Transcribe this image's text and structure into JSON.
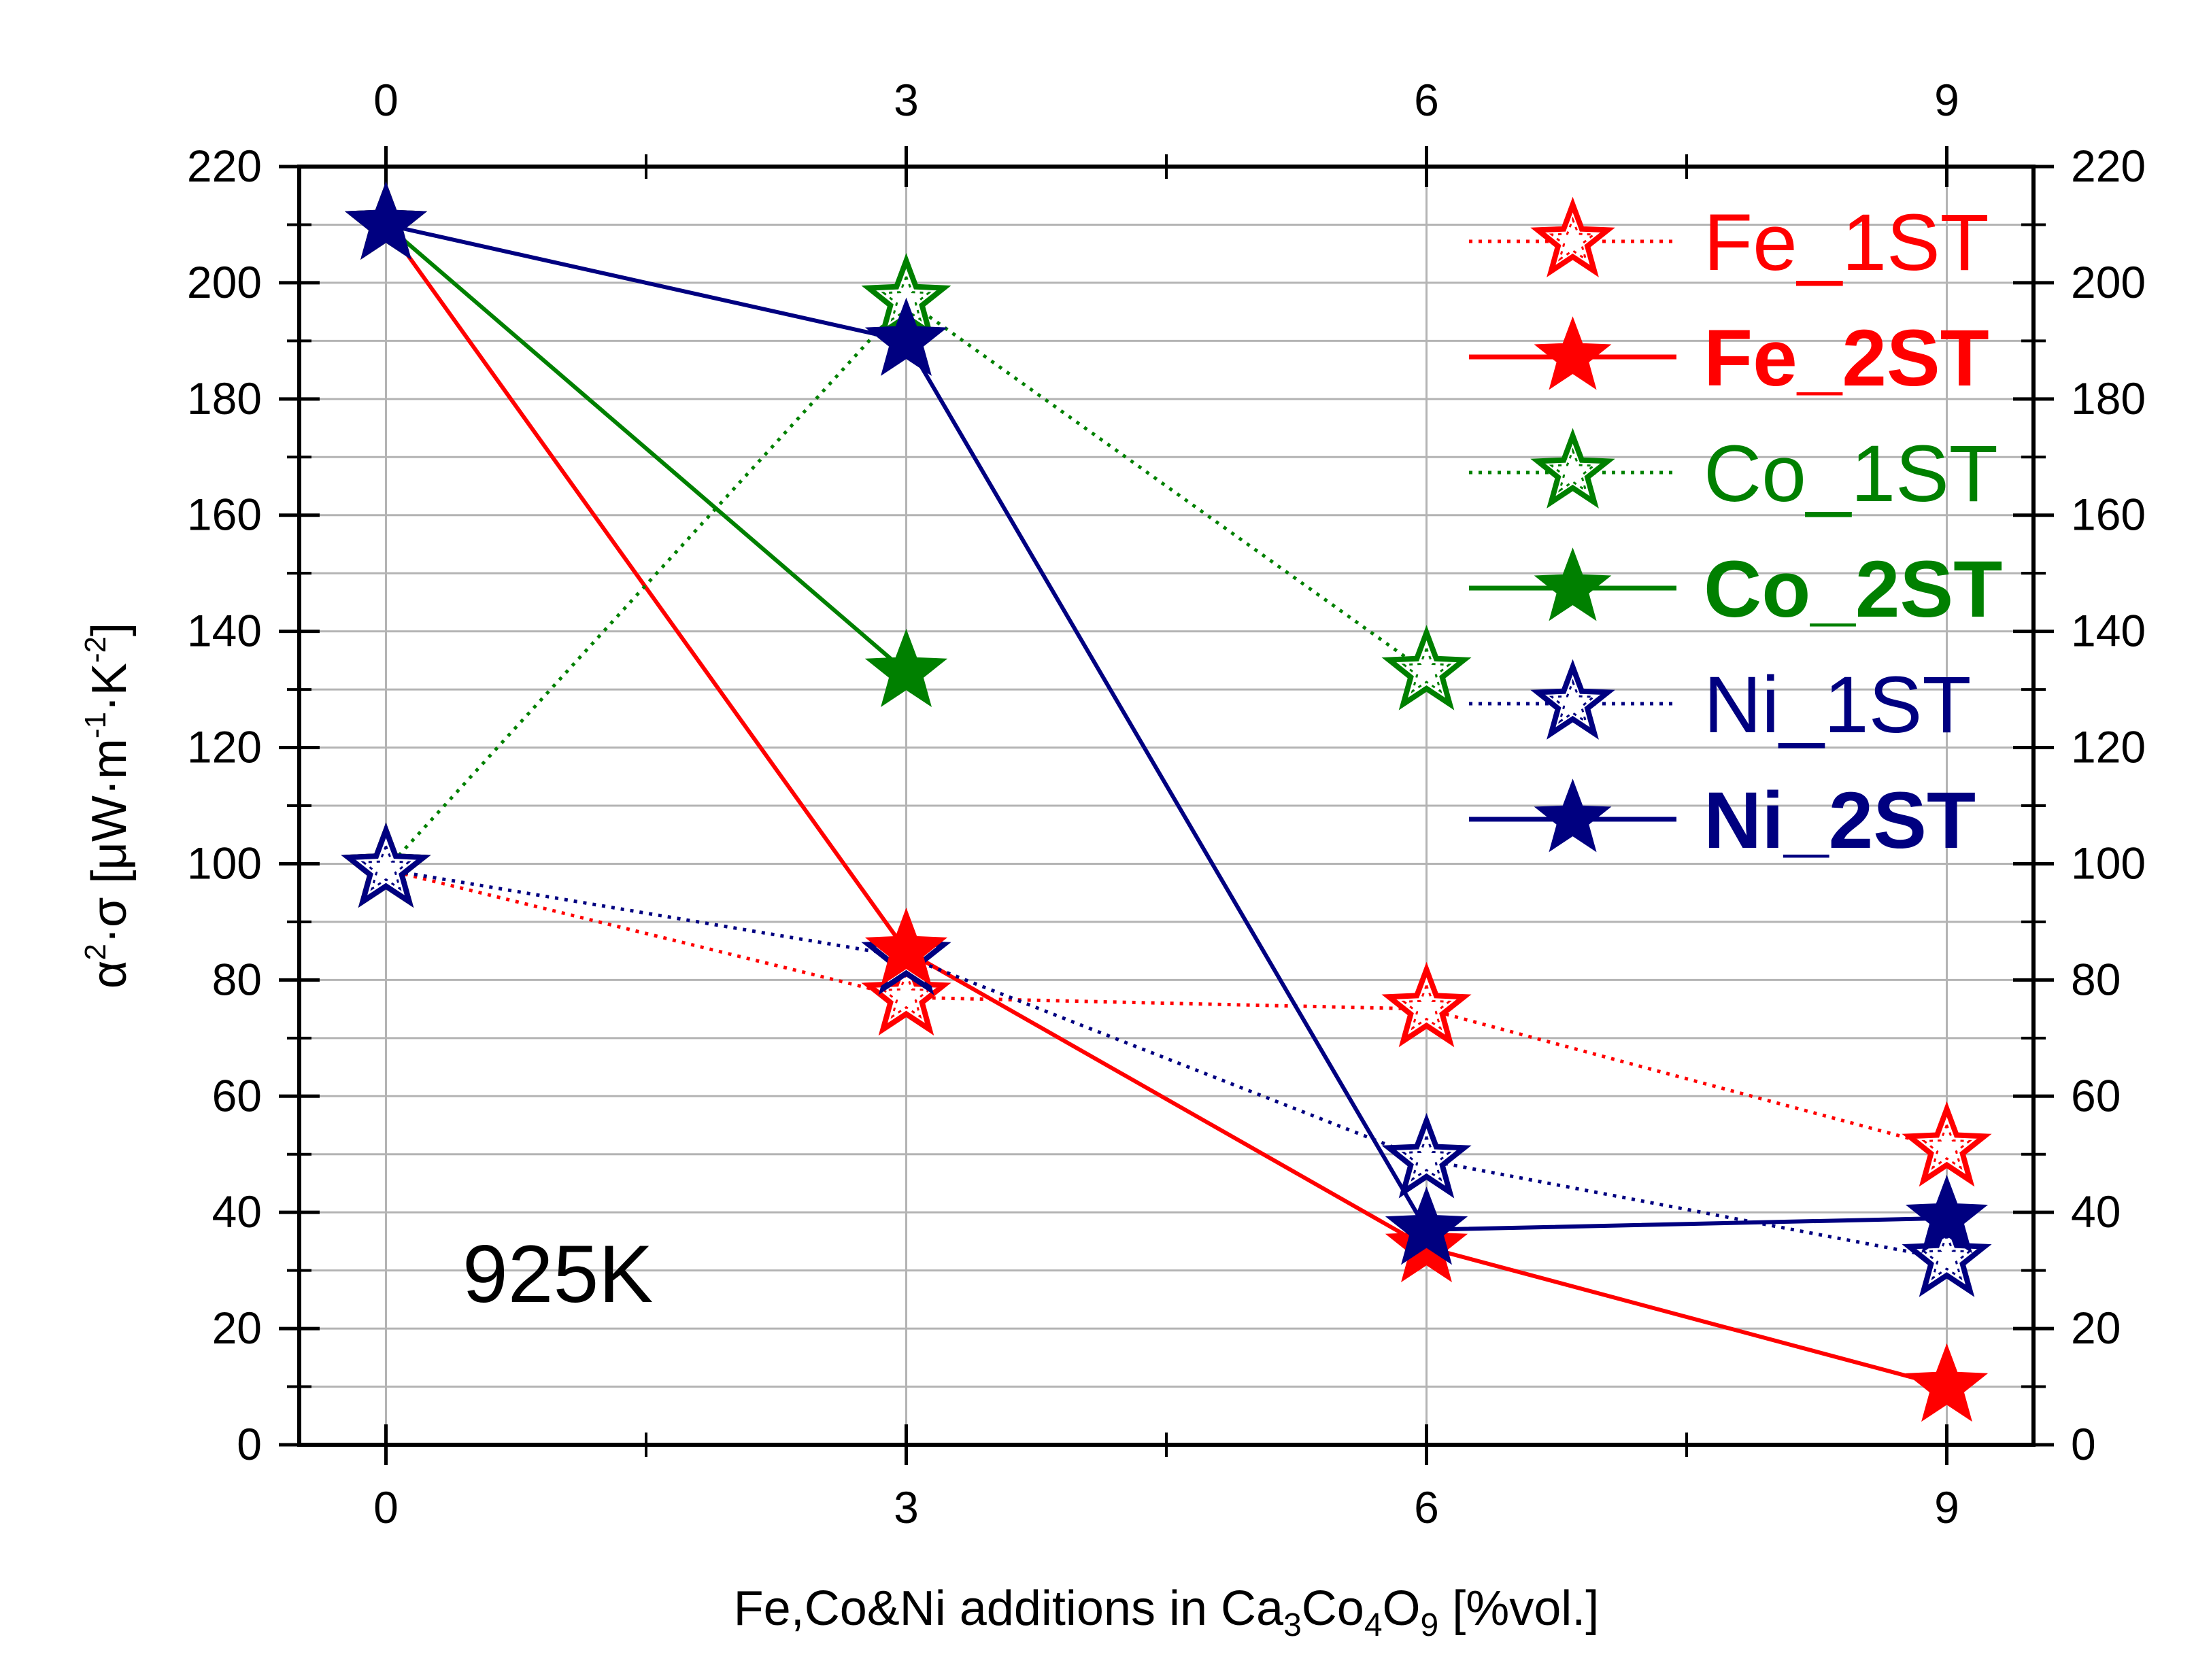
{
  "chart_data": {
    "type": "line",
    "x": [
      0,
      3,
      6,
      9
    ],
    "xlim": [
      -0.5,
      9.5
    ],
    "ylim": [
      0,
      220
    ],
    "yticks": [
      0,
      20,
      40,
      60,
      80,
      100,
      120,
      140,
      160,
      180,
      200,
      220
    ],
    "xticks": [
      0,
      3,
      6,
      9
    ],
    "grid": true,
    "legend_position": "top-right",
    "xlabel": {
      "p1": "Fe,Co&Ni additions in Ca",
      "s1": "3",
      "p2": "Co",
      "s2": "4",
      "p3": "O",
      "s3": "9",
      "p4": " [%vol.]"
    },
    "ylabel": {
      "alpha": "α",
      "alpha_sup": "2",
      "mid": "·σ [μW·m",
      "m_sup": "-1",
      "mid2": "·K",
      "k_sup": "-2",
      "end": "]"
    },
    "annotation": "925K",
    "series": [
      {
        "name": "Fe_1ST",
        "x": [
          0,
          3,
          6,
          9
        ],
        "values": [
          99,
          77,
          75,
          51
        ],
        "color": "#ff0000",
        "style": "dotted",
        "marker": "open-star",
        "bold": false
      },
      {
        "name": "Fe_2ST",
        "x": [
          0,
          3,
          6,
          9
        ],
        "values": [
          210,
          85,
          34,
          10
        ],
        "color": "#ff0000",
        "style": "solid",
        "marker": "filled-star",
        "bold": true
      },
      {
        "name": "Co_1ST",
        "x": [
          0,
          3,
          6
        ],
        "values": [
          99,
          197,
          133
        ],
        "color": "#008000",
        "style": "dotted",
        "marker": "open-star",
        "bold": false
      },
      {
        "name": "Co_2ST",
        "x": [
          0,
          3
        ],
        "values": [
          210,
          133
        ],
        "color": "#008000",
        "style": "solid",
        "marker": "filled-star",
        "bold": true
      },
      {
        "name": "Ni_1ST",
        "x": [
          0,
          3,
          6,
          9
        ],
        "values": [
          99,
          84,
          49,
          32
        ],
        "color": "#000080",
        "style": "dotted",
        "marker": "open-star",
        "bold": false
      },
      {
        "name": "Ni_2ST",
        "x": [
          0,
          3,
          6,
          9
        ],
        "values": [
          210,
          190,
          37,
          39
        ],
        "color": "#000080",
        "style": "solid",
        "marker": "filled-star",
        "bold": true
      }
    ]
  }
}
